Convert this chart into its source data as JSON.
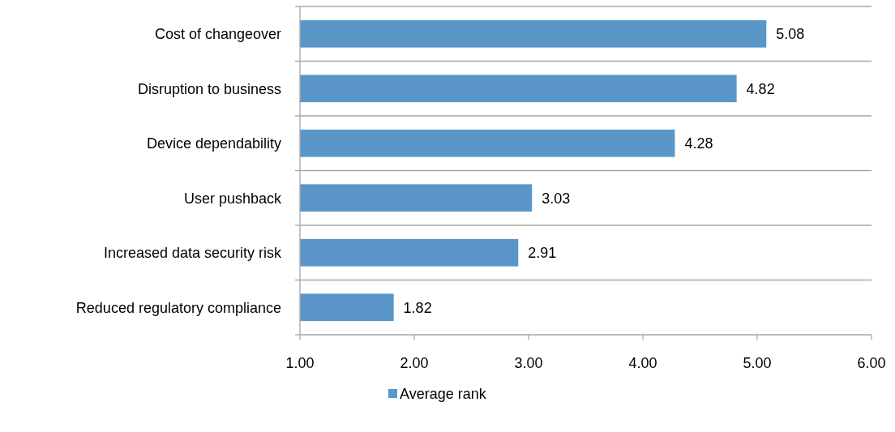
{
  "chart_data": {
    "type": "bar",
    "orientation": "horizontal",
    "categories": [
      "Cost of changeover",
      "Disruption to business",
      "Device dependability",
      "User pushback",
      "Increased data security risk",
      "Reduced regulatory compliance"
    ],
    "series": [
      {
        "name": "Average rank",
        "color": "#5b96c9",
        "values": [
          5.08,
          4.82,
          4.28,
          3.03,
          2.91,
          1.82
        ]
      }
    ],
    "xlim": [
      1,
      6
    ],
    "xticks": [
      {
        "value": 1,
        "label": "1.00"
      },
      {
        "value": 2,
        "label": "2.00"
      },
      {
        "value": 3,
        "label": "3.00"
      },
      {
        "value": 4,
        "label": "4.00"
      },
      {
        "value": 5,
        "label": "5.00"
      },
      {
        "value": 6,
        "label": "6.00"
      }
    ],
    "data_labels": true,
    "grid": "y",
    "legend": "bottom"
  }
}
